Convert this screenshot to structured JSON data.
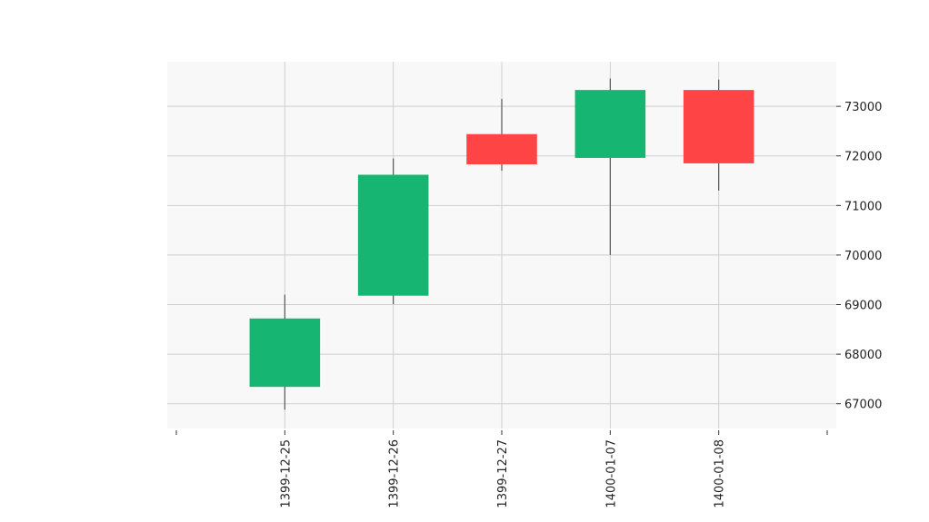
{
  "chart_data": {
    "type": "candlestick",
    "title": "",
    "xlabel": "",
    "ylabel": "",
    "ylim": [
      66500,
      73900
    ],
    "y_ticks": [
      67000,
      68000,
      69000,
      70000,
      71000,
      72000,
      73000
    ],
    "y_axis_position": "right",
    "grid": true,
    "categories": [
      "1399-12-25",
      "1399-12-26",
      "1399-12-27",
      "1400-01-07",
      "1400-01-08"
    ],
    "candles": [
      {
        "date": "1399-12-25",
        "open": 67340,
        "high": 69200,
        "low": 66880,
        "close": 68720
      },
      {
        "date": "1399-12-26",
        "open": 69180,
        "high": 71950,
        "low": 69010,
        "close": 71620
      },
      {
        "date": "1399-12-27",
        "open": 72440,
        "high": 73150,
        "low": 71700,
        "close": 71830
      },
      {
        "date": "1400-01-07",
        "open": 71960,
        "high": 73560,
        "low": 70000,
        "close": 73330
      },
      {
        "date": "1400-01-08",
        "open": 73330,
        "high": 73540,
        "low": 71300,
        "close": 71850
      }
    ],
    "colors": {
      "up": "#17b572",
      "down": "#fe4445",
      "wick": "#555555",
      "grid": "#cfcfcf",
      "plot_bg": "#f8f8f8"
    }
  }
}
